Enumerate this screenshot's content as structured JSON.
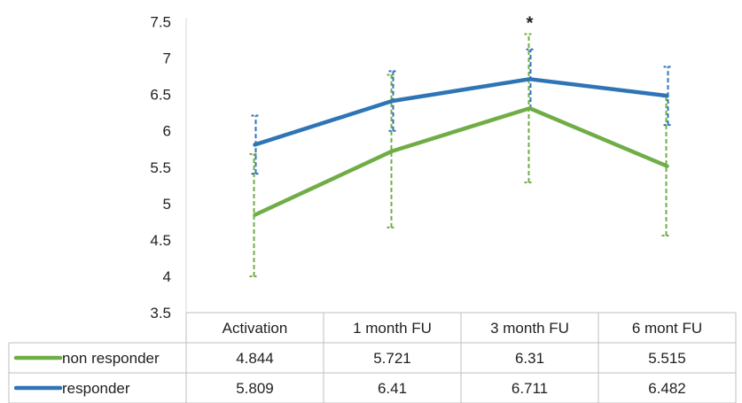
{
  "chart_data": {
    "type": "line",
    "categories": [
      "Activation",
      "1 month FU",
      "3 month FU",
      "6 mont FU"
    ],
    "ylim": [
      3.5,
      7.5
    ],
    "yticks": [
      "7.5",
      "7",
      "6.5",
      "6",
      "5.5",
      "5",
      "4.5",
      "4",
      "3.5"
    ],
    "annotation": {
      "text": "*",
      "category": "3 month FU"
    },
    "series": [
      {
        "name": "non responder",
        "color": "#70ad47",
        "values": [
          4.844,
          5.721,
          6.31,
          5.515
        ],
        "labels": [
          "4.844",
          "5.721",
          "6.31",
          "5.515"
        ],
        "error_low": [
          4.0,
          4.67,
          5.29,
          4.56
        ],
        "error_high": [
          5.68,
          6.77,
          7.33,
          6.47
        ]
      },
      {
        "name": "responder",
        "color": "#2e75b6",
        "values": [
          5.809,
          6.41,
          6.711,
          6.482
        ],
        "labels": [
          "5.809",
          "6.41",
          "6.711",
          "6.482"
        ],
        "error_low": [
          5.41,
          6.0,
          6.3,
          6.08
        ],
        "error_high": [
          6.21,
          6.82,
          7.12,
          6.88
        ]
      }
    ]
  }
}
